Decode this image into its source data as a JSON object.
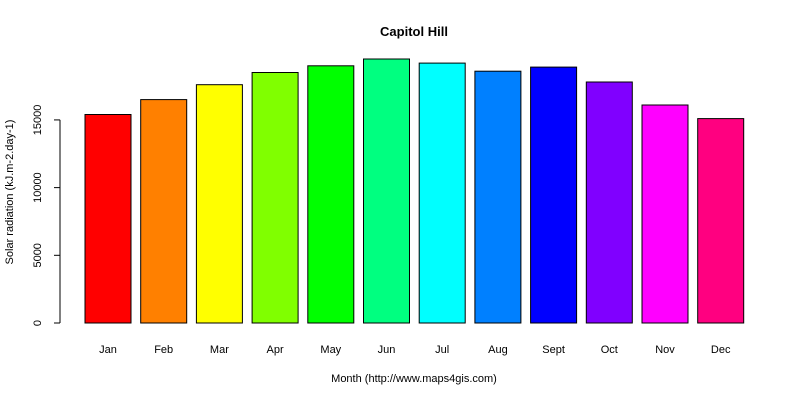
{
  "chart_data": {
    "type": "bar",
    "title": "Capitol Hill",
    "xlabel": "Month (http://www.maps4gis.com)",
    "ylabel": "Solar radiation (kJ.m-2.day-1)",
    "categories": [
      "Jan",
      "Feb",
      "Mar",
      "Apr",
      "May",
      "Jun",
      "Jul",
      "Aug",
      "Sept",
      "Oct",
      "Nov",
      "Dec"
    ],
    "values": [
      15400,
      16500,
      17600,
      18500,
      19000,
      19500,
      19200,
      18600,
      18900,
      17800,
      16100,
      15100
    ],
    "colors": [
      "#ff0000",
      "#ff8000",
      "#ffff00",
      "#80ff00",
      "#00ff00",
      "#00ff80",
      "#00ffff",
      "#0080ff",
      "#0000ff",
      "#8000ff",
      "#ff00ff",
      "#ff0080"
    ],
    "yticks": [
      0,
      5000,
      10000,
      15000
    ],
    "ylim": [
      0,
      19500
    ],
    "grid": false,
    "legend": "none"
  }
}
